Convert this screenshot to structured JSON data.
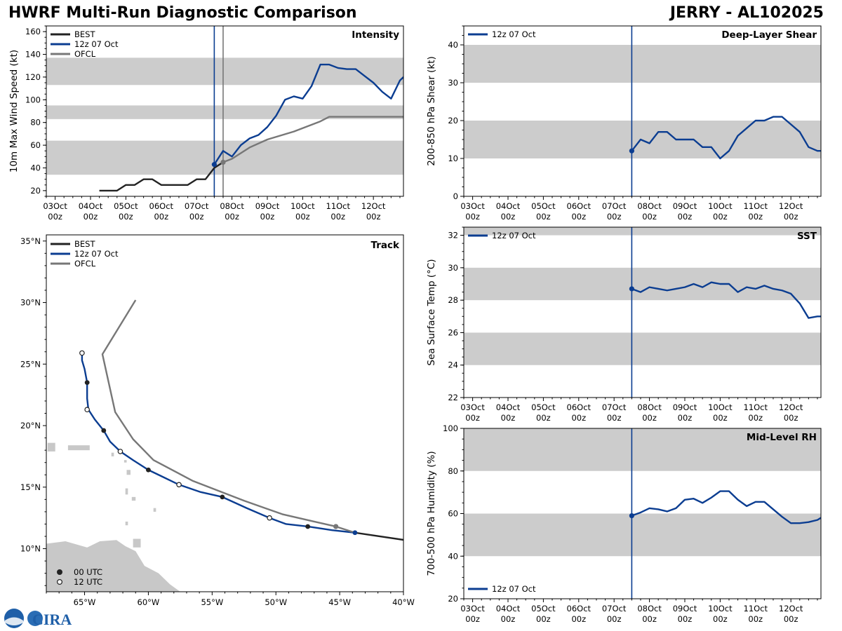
{
  "header": {
    "title": "HWRF Multi-Run Diagnostic Comparison",
    "storm": "JERRY - AL102025"
  },
  "colors": {
    "best": "#222222",
    "run": "#0b3d91",
    "ofcl": "#777777",
    "band": "#cccccc",
    "land": "#c8c8c8"
  },
  "logo": {
    "text": "CIRA"
  },
  "time_ticks": [
    {
      "day": "03Oct",
      "hour": "00z"
    },
    {
      "day": "04Oct",
      "hour": "00z"
    },
    {
      "day": "05Oct",
      "hour": "00z"
    },
    {
      "day": "06Oct",
      "hour": "00z"
    },
    {
      "day": "07Oct",
      "hour": "00z"
    },
    {
      "day": "08Oct",
      "hour": "00z"
    },
    {
      "day": "09Oct",
      "hour": "00z"
    },
    {
      "day": "10Oct",
      "hour": "00z"
    },
    {
      "day": "11Oct",
      "hour": "00z"
    },
    {
      "day": "12Oct",
      "hour": "00z"
    }
  ],
  "chart_data": [
    {
      "id": "intensity",
      "type": "line",
      "title": "Intensity",
      "ylabel": "10m Max Wind Speed (kt)",
      "xlim_days": [
        -0.25,
        9.85
      ],
      "ylim": [
        15,
        165
      ],
      "yticks": [
        20,
        40,
        60,
        80,
        100,
        120,
        140,
        160
      ],
      "bands": [
        [
          34,
          64
        ],
        [
          83,
          95
        ],
        [
          113,
          137
        ]
      ],
      "vlines": [
        {
          "x": 4.5,
          "color": "run"
        },
        {
          "x": 4.75,
          "color": "ofcl"
        }
      ],
      "legend": [
        "BEST",
        "12z 07 Oct",
        "OFCL"
      ],
      "series": [
        {
          "name": "BEST",
          "color": "best",
          "x": [
            1.25,
            1.5,
            1.75,
            2.0,
            2.25,
            2.5,
            2.75,
            3.0,
            3.25,
            3.5,
            3.75,
            4.0,
            4.25,
            4.5,
            4.75
          ],
          "y": [
            20,
            20,
            20,
            25,
            25,
            30,
            30,
            25,
            25,
            25,
            25,
            30,
            30,
            40,
            45
          ]
        },
        {
          "name": "12z 07 Oct",
          "color": "run",
          "marker_start": true,
          "x": [
            4.5,
            4.75,
            5.0,
            5.25,
            5.5,
            5.75,
            6.0,
            6.25,
            6.5,
            6.75,
            7.0,
            7.25,
            7.5,
            7.75,
            8.0,
            8.25,
            8.5,
            8.75,
            9.0,
            9.25,
            9.5,
            9.75,
            9.85
          ],
          "y": [
            43,
            55,
            50,
            60,
            66,
            69,
            76,
            86,
            100,
            103,
            101,
            112,
            131,
            131,
            128,
            127,
            127,
            121,
            115,
            107,
            101,
            117,
            120
          ]
        },
        {
          "name": "OFCL",
          "color": "ofcl",
          "marker_start": true,
          "x": [
            4.75,
            5.0,
            5.5,
            6.0,
            6.75,
            7.5,
            7.75,
            8.75,
            9.85
          ],
          "y": [
            45,
            48,
            58,
            65,
            72,
            81,
            85,
            85,
            85
          ]
        }
      ]
    },
    {
      "id": "shear",
      "type": "line",
      "title": "Deep-Layer Shear",
      "ylabel": "200-850 hPa Shear (kt)",
      "xlim_days": [
        -0.25,
        9.85
      ],
      "ylim": [
        0,
        45
      ],
      "yticks": [
        0,
        10,
        20,
        30,
        40
      ],
      "bands": [
        [
          10,
          20
        ],
        [
          30,
          40
        ]
      ],
      "vlines": [
        {
          "x": 4.5,
          "color": "run"
        }
      ],
      "legend": [
        "12z 07 Oct"
      ],
      "series": [
        {
          "name": "12z 07 Oct",
          "color": "run",
          "marker_start": true,
          "x": [
            4.5,
            4.75,
            5.0,
            5.25,
            5.5,
            5.75,
            6.0,
            6.25,
            6.5,
            6.75,
            7.0,
            7.25,
            7.5,
            7.75,
            8.0,
            8.25,
            8.5,
            8.75,
            9.0,
            9.25,
            9.5,
            9.75,
            9.85
          ],
          "y": [
            12,
            15,
            14,
            17,
            17,
            15,
            15,
            15,
            13,
            13,
            10,
            12,
            16,
            18,
            20,
            20,
            21,
            21,
            19,
            17,
            13,
            12,
            12
          ]
        }
      ]
    },
    {
      "id": "sst",
      "type": "line",
      "title": "SST",
      "ylabel": "Sea Surface Temp (°C)",
      "xlim_days": [
        -0.25,
        9.85
      ],
      "ylim": [
        22,
        32.5
      ],
      "yticks": [
        22,
        24,
        26,
        28,
        30,
        32
      ],
      "bands": [
        [
          24,
          26
        ],
        [
          28,
          30
        ],
        [
          32,
          32.5
        ]
      ],
      "vlines": [
        {
          "x": 4.5,
          "color": "run"
        }
      ],
      "legend": [
        "12z 07 Oct"
      ],
      "series": [
        {
          "name": "12z 07 Oct",
          "color": "run",
          "marker_start": true,
          "x": [
            4.5,
            4.75,
            5.0,
            5.25,
            5.5,
            5.75,
            6.0,
            6.25,
            6.5,
            6.75,
            7.0,
            7.25,
            7.5,
            7.75,
            8.0,
            8.25,
            8.5,
            8.75,
            9.0,
            9.25,
            9.5,
            9.75,
            9.85
          ],
          "y": [
            28.7,
            28.5,
            28.8,
            28.7,
            28.6,
            28.7,
            28.8,
            29.0,
            28.8,
            29.1,
            29.0,
            29.0,
            28.5,
            28.8,
            28.7,
            28.9,
            28.7,
            28.6,
            28.4,
            27.8,
            26.9,
            27.0,
            27.0
          ]
        }
      ]
    },
    {
      "id": "rh",
      "type": "line",
      "title": "Mid-Level RH",
      "ylabel": "700-500 hPa Humidity (%)",
      "xlim_days": [
        -0.25,
        9.85
      ],
      "ylim": [
        20,
        100
      ],
      "yticks": [
        20,
        40,
        60,
        80,
        100
      ],
      "bands": [
        [
          40,
          60
        ],
        [
          80,
          100
        ]
      ],
      "vlines": [
        {
          "x": 4.5,
          "color": "run"
        }
      ],
      "legend": [
        "12z 07 Oct"
      ],
      "legend_position": "bottom-left",
      "series": [
        {
          "name": "12z 07 Oct",
          "color": "run",
          "marker_start": true,
          "x": [
            4.5,
            4.75,
            5.0,
            5.25,
            5.5,
            5.75,
            6.0,
            6.25,
            6.5,
            6.75,
            7.0,
            7.25,
            7.5,
            7.75,
            8.0,
            8.25,
            8.5,
            8.75,
            9.0,
            9.25,
            9.5,
            9.75,
            9.85
          ],
          "y": [
            59,
            60.5,
            62.5,
            62,
            61,
            62.5,
            66.5,
            67,
            65,
            67.5,
            70.5,
            70.5,
            66.5,
            63.5,
            65.5,
            65.5,
            62,
            58.5,
            55.5,
            55.5,
            56,
            57,
            58
          ]
        }
      ]
    },
    {
      "id": "track",
      "type": "map-track",
      "title": "Track",
      "xlim_lon": [
        -68,
        -40
      ],
      "ylim_lat": [
        6.5,
        35.5
      ],
      "xticks": [
        -65,
        -60,
        -55,
        -50,
        -45,
        -40
      ],
      "xtick_labels": [
        "65°W",
        "60°W",
        "55°W",
        "50°W",
        "45°W",
        "40°W"
      ],
      "yticks": [
        10,
        15,
        20,
        25,
        30,
        35
      ],
      "ytick_labels": [
        "10°N",
        "15°N",
        "20°N",
        "25°N",
        "30°N",
        "35°N"
      ],
      "legend": [
        "BEST",
        "12z 07 Oct",
        "OFCL"
      ],
      "marker_legend": [
        "00 UTC",
        "12 UTC"
      ],
      "series": [
        {
          "name": "BEST",
          "color": "best",
          "lon": [
            -39.9,
            -43.8
          ],
          "lat": [
            10.7,
            11.3
          ]
        },
        {
          "name": "12z 07 Oct",
          "color": "run",
          "lon": [
            -43.8,
            -45.6,
            -47.5,
            -49.2,
            -50.5,
            -52.3,
            -54.2,
            -55.9,
            -57.6,
            -59.0,
            -60.0,
            -61.2,
            -62.2,
            -63.0,
            -63.5,
            -64.2,
            -64.7,
            -64.8,
            -64.8,
            -65.0,
            -65.2,
            -65.2
          ],
          "lat": [
            11.3,
            11.5,
            11.8,
            12.0,
            12.5,
            13.3,
            14.2,
            14.6,
            15.2,
            15.9,
            16.4,
            17.2,
            17.9,
            18.7,
            19.6,
            20.5,
            21.3,
            22.2,
            23.5,
            24.6,
            25.3,
            25.9
          ]
        },
        {
          "name": "OFCL",
          "color": "ofcl",
          "lon": [
            -43.8,
            -45.3,
            -47.0,
            -49.5,
            -52.5,
            -56.5,
            -59.6,
            -61.2,
            -62.6,
            -63.6,
            -61.0
          ],
          "lat": [
            11.3,
            11.8,
            12.2,
            12.8,
            13.9,
            15.5,
            17.2,
            18.9,
            21.1,
            25.8,
            30.2
          ]
        }
      ],
      "markers_00": [
        [
          -43.8,
          11.3
        ],
        [
          -47.5,
          11.8
        ],
        [
          -54.2,
          14.2
        ],
        [
          -60.0,
          16.4
        ],
        [
          -63.5,
          19.6
        ],
        [
          -64.8,
          23.5
        ]
      ],
      "markers_12": [
        [
          -50.5,
          12.5
        ],
        [
          -57.6,
          15.2
        ],
        [
          -62.2,
          17.9
        ],
        [
          -64.8,
          21.3
        ],
        [
          -65.2,
          25.9
        ]
      ],
      "marker_ofcl": [
        -45.3,
        11.8
      ]
    }
  ]
}
